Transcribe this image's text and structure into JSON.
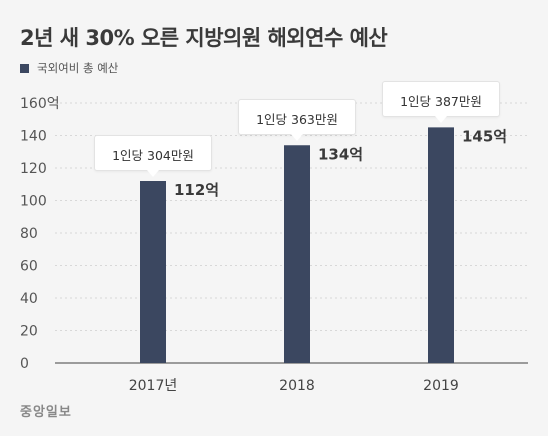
{
  "title": "2년 새 30% 오른 지방의원 해외연수 예산",
  "legend": "국외여비 총 예산",
  "source": "중앙일보",
  "colors": {
    "bar": "#3b4760",
    "grid": "#d8d8d8",
    "axis": "#666666",
    "background": "#f5f5f5"
  },
  "chart_data": {
    "type": "bar",
    "categories": [
      "2017년",
      "2018",
      "2019"
    ],
    "values": [
      112,
      134,
      145
    ],
    "value_labels": [
      "112억",
      "134억",
      "145억"
    ],
    "per_person_labels": [
      "1인당 304만원",
      "1인당 363만원",
      "1인당 387만원"
    ],
    "yticks": [
      "0",
      "20",
      "40",
      "60",
      "80",
      "100",
      "120",
      "140",
      "160억"
    ],
    "ylim": [
      0,
      160
    ],
    "grid": true,
    "legend_position": "top-left"
  }
}
